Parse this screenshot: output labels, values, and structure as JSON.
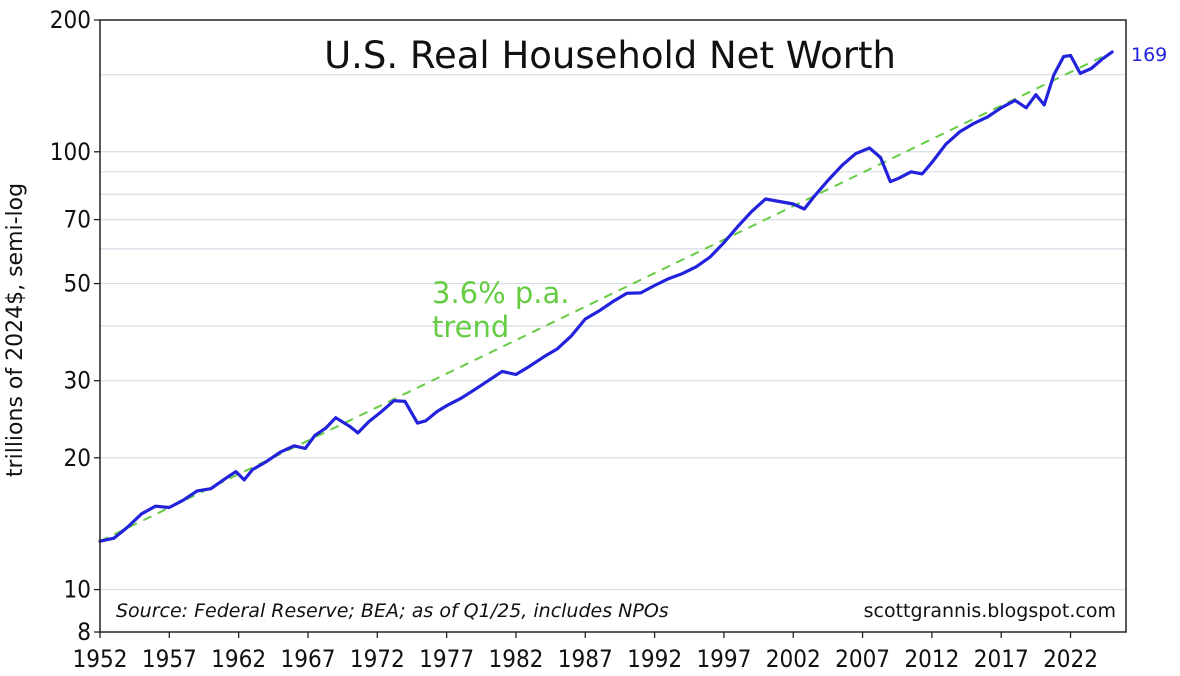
{
  "chart_data": {
    "type": "line",
    "title": "U.S. Real Household Net Worth",
    "ylabel": "trillions of 2024$, semi-log",
    "xlabel": "",
    "y_scale": "log",
    "ylim": [
      8,
      200
    ],
    "xlim": [
      1952,
      2026
    ],
    "y_ticks": [
      8,
      10,
      20,
      30,
      50,
      70,
      100,
      200
    ],
    "y_tick_labels": [
      "8",
      "10",
      "20",
      "30",
      "50",
      "70",
      "100",
      "200"
    ],
    "y_minor_gridlines": [
      40,
      60,
      80,
      90,
      150
    ],
    "x_ticks": [
      1952,
      1957,
      1962,
      1967,
      1972,
      1977,
      1982,
      1987,
      1992,
      1997,
      2002,
      2007,
      2012,
      2017,
      2022
    ],
    "x_tick_labels": [
      "1952",
      "1957",
      "1962",
      "1967",
      "1972",
      "1977",
      "1982",
      "1987",
      "1992",
      "1997",
      "2002",
      "2007",
      "2012",
      "2017",
      "2022"
    ],
    "grid": true,
    "series": [
      {
        "role": "actual",
        "color": "#2222dd",
        "points": [
          [
            1952.0,
            12.9
          ],
          [
            1953.0,
            13.1
          ],
          [
            1954.0,
            13.9
          ],
          [
            1955.0,
            14.9
          ],
          [
            1956.0,
            15.5
          ],
          [
            1957.0,
            15.4
          ],
          [
            1958.0,
            16.0
          ],
          [
            1959.0,
            16.8
          ],
          [
            1960.0,
            17.0
          ],
          [
            1961.0,
            17.9
          ],
          [
            1961.8,
            18.6
          ],
          [
            1962.4,
            17.8
          ],
          [
            1963.0,
            18.8
          ],
          [
            1964.0,
            19.6
          ],
          [
            1965.0,
            20.6
          ],
          [
            1966.0,
            21.3
          ],
          [
            1966.8,
            21.0
          ],
          [
            1967.5,
            22.5
          ],
          [
            1968.3,
            23.4
          ],
          [
            1969.0,
            24.7
          ],
          [
            1970.0,
            23.6
          ],
          [
            1970.6,
            22.8
          ],
          [
            1971.4,
            24.2
          ],
          [
            1972.3,
            25.5
          ],
          [
            1973.2,
            27.0
          ],
          [
            1974.0,
            26.9
          ],
          [
            1974.9,
            24.0
          ],
          [
            1975.5,
            24.3
          ],
          [
            1976.3,
            25.5
          ],
          [
            1977.0,
            26.3
          ],
          [
            1978.0,
            27.3
          ],
          [
            1979.0,
            28.6
          ],
          [
            1980.0,
            30.0
          ],
          [
            1981.0,
            31.5
          ],
          [
            1982.0,
            31.0
          ],
          [
            1983.0,
            32.4
          ],
          [
            1984.0,
            34.0
          ],
          [
            1985.0,
            35.5
          ],
          [
            1986.0,
            38.0
          ],
          [
            1987.0,
            41.5
          ],
          [
            1988.0,
            43.3
          ],
          [
            1989.0,
            45.5
          ],
          [
            1990.0,
            47.5
          ],
          [
            1991.0,
            47.6
          ],
          [
            1992.0,
            49.5
          ],
          [
            1993.0,
            51.3
          ],
          [
            1994.0,
            52.7
          ],
          [
            1995.0,
            54.6
          ],
          [
            1996.0,
            57.5
          ],
          [
            1997.0,
            62.0
          ],
          [
            1998.0,
            67.5
          ],
          [
            1999.0,
            73.0
          ],
          [
            2000.0,
            78.0
          ],
          [
            2001.0,
            77.0
          ],
          [
            2002.0,
            76.0
          ],
          [
            2002.8,
            74.0
          ],
          [
            2003.5,
            79.0
          ],
          [
            2004.5,
            86.0
          ],
          [
            2005.5,
            93.0
          ],
          [
            2006.5,
            99.0
          ],
          [
            2007.5,
            102.0
          ],
          [
            2008.3,
            97.0
          ],
          [
            2009.0,
            85.5
          ],
          [
            2009.6,
            87.0
          ],
          [
            2010.5,
            90.0
          ],
          [
            2011.3,
            89.0
          ],
          [
            2012.0,
            94.5
          ],
          [
            2013.0,
            104.0
          ],
          [
            2014.0,
            111.0
          ],
          [
            2015.0,
            116.0
          ],
          [
            2016.0,
            120.0
          ],
          [
            2017.0,
            126.0
          ],
          [
            2018.0,
            131.0
          ],
          [
            2018.8,
            126.0
          ],
          [
            2019.5,
            135.0
          ],
          [
            2020.1,
            128.0
          ],
          [
            2020.8,
            150.0
          ],
          [
            2021.5,
            165.0
          ],
          [
            2022.0,
            166.0
          ],
          [
            2022.7,
            151.0
          ],
          [
            2023.5,
            155.0
          ],
          [
            2024.3,
            163.0
          ],
          [
            2025.0,
            169.0
          ]
        ]
      },
      {
        "role": "trend",
        "color": "#66cc44",
        "style": "dashed",
        "rate_label": "3.6% p.a.",
        "points": [
          [
            1952.0,
            12.9
          ],
          [
            2025.0,
            169.0
          ]
        ]
      }
    ],
    "annotations": {
      "trend_line1": "3.6% p.a.",
      "trend_line2": "trend",
      "end_value": "169",
      "source": "Source: Federal Reserve; BEA; as of Q1/25, includes NPOs",
      "credit": "scottgrannis.blogspot.com"
    },
    "colors": {
      "series": "#2222dd",
      "trend": "#66cc44",
      "grid": "#d6dbe6"
    }
  }
}
